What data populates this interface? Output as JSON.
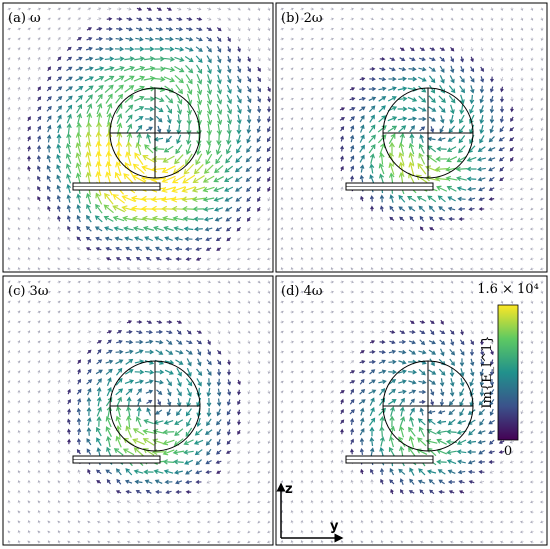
{
  "panels": [
    {
      "label": "(a) ω"
    },
    {
      "label": "(b) 2ω"
    },
    {
      "label": "(c) 3ω"
    },
    {
      "label": "(d) 4ω"
    }
  ],
  "colorbar": {
    "label": "Im{E_l^1}",
    "max_label": "1.6 × 10⁴",
    "min_label": "0"
  },
  "axes": {
    "vertical": "z",
    "horizontal": "y"
  }
}
